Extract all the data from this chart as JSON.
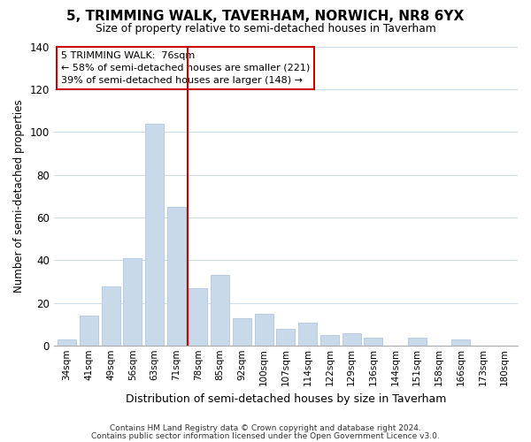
{
  "title": "5, TRIMMING WALK, TAVERHAM, NORWICH, NR8 6YX",
  "subtitle": "Size of property relative to semi-detached houses in Taverham",
  "xlabel": "Distribution of semi-detached houses by size in Taverham",
  "ylabel": "Number of semi-detached properties",
  "bar_color": "#c8daea",
  "bar_edge_color": "#b0c8e0",
  "categories": [
    "34sqm",
    "41sqm",
    "49sqm",
    "56sqm",
    "63sqm",
    "71sqm",
    "78sqm",
    "85sqm",
    "92sqm",
    "100sqm",
    "107sqm",
    "114sqm",
    "122sqm",
    "129sqm",
    "136sqm",
    "144sqm",
    "151sqm",
    "158sqm",
    "166sqm",
    "173sqm",
    "180sqm"
  ],
  "values": [
    3,
    14,
    28,
    41,
    104,
    65,
    27,
    33,
    13,
    15,
    8,
    11,
    5,
    6,
    4,
    0,
    4,
    0,
    3,
    0,
    0
  ],
  "ylim": [
    0,
    140
  ],
  "yticks": [
    0,
    20,
    40,
    60,
    80,
    100,
    120,
    140
  ],
  "annotation_line1": "5 TRIMMING WALK:  76sqm",
  "annotation_line2": "← 58% of semi-detached houses are smaller (221)",
  "annotation_line3": "39% of semi-detached houses are larger (148) →",
  "footer1": "Contains HM Land Registry data © Crown copyright and database right 2024.",
  "footer2": "Contains public sector information licensed under the Open Government Licence v3.0.",
  "grid_color": "#ccdde8",
  "marker_line_color": "#cc0000",
  "box_edge_color": "#cc0000",
  "background_color": "#ffffff",
  "marker_line_index": 5.5
}
